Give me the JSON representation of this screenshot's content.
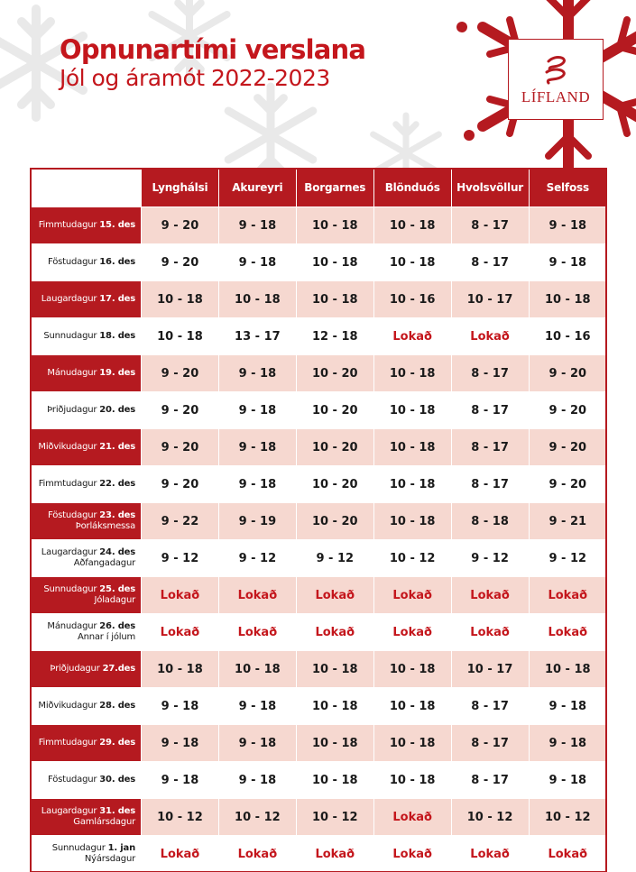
{
  "title": "Opnunartími verslana",
  "subtitle": "Jól og áramót 2022-2023",
  "logo": {
    "text": "LÍFLAND",
    "icon": "lifland-swirl-logo-icon"
  },
  "colors": {
    "brand_red": "#b51a20",
    "row_tint": "#f6d8d0",
    "closed_text": "#c4161c"
  },
  "columns": [
    "Lynghálsi",
    "Akureyri",
    "Borgarnes",
    "Blönduós",
    "Hvolsvöllur",
    "Selfoss"
  ],
  "rows": [
    {
      "weekday": "Fimmtudagur",
      "date": "15. des",
      "note": "",
      "hours": [
        "9 - 20",
        "9 - 18",
        "10 - 18",
        "10 - 18",
        "8 - 17",
        "9 - 18"
      ]
    },
    {
      "weekday": "Föstudagur",
      "date": "16. des",
      "note": "",
      "hours": [
        "9 - 20",
        "9 - 18",
        "10 - 18",
        "10 - 18",
        "8 - 17",
        "9 - 18"
      ]
    },
    {
      "weekday": "Laugardagur",
      "date": "17. des",
      "note": "",
      "hours": [
        "10 - 18",
        "10 - 18",
        "10 - 18",
        "10 - 16",
        "10 - 17",
        "10 - 18"
      ]
    },
    {
      "weekday": "Sunnudagur",
      "date": "18. des",
      "note": "",
      "hours": [
        "10 - 18",
        "13 - 17",
        "12 - 18",
        "Lokað",
        "Lokað",
        "10 - 16"
      ]
    },
    {
      "weekday": "Mánudagur",
      "date": "19. des",
      "note": "",
      "hours": [
        "9 - 20",
        "9 - 18",
        "10 - 20",
        "10 - 18",
        "8 - 17",
        "9 - 20"
      ]
    },
    {
      "weekday": "Þriðjudagur",
      "date": "20. des",
      "note": "",
      "hours": [
        "9 - 20",
        "9 - 18",
        "10 - 20",
        "10 - 18",
        "8 - 17",
        "9 - 20"
      ]
    },
    {
      "weekday": "Miðvikudagur",
      "date": "21. des",
      "note": "",
      "hours": [
        "9 - 20",
        "9 - 18",
        "10 - 20",
        "10 - 18",
        "8 - 17",
        "9 - 20"
      ]
    },
    {
      "weekday": "Fimmtudagur",
      "date": "22. des",
      "note": "",
      "hours": [
        "9 - 20",
        "9 - 18",
        "10 - 20",
        "10 - 18",
        "8 - 17",
        "9 - 20"
      ]
    },
    {
      "weekday": "Föstudagur",
      "date": "23. des",
      "note": "Þorláksmessa",
      "hours": [
        "9 - 22",
        "9 - 19",
        "10 - 20",
        "10 - 18",
        "8 - 18",
        "9 - 21"
      ]
    },
    {
      "weekday": "Laugardagur",
      "date": "24. des",
      "note": "Aðfangadagur",
      "hours": [
        "9 - 12",
        "9 - 12",
        "9 - 12",
        "10 - 12",
        "9 - 12",
        "9 - 12"
      ]
    },
    {
      "weekday": "Sunnudagur",
      "date": "25. des",
      "note": "Jóladagur",
      "hours": [
        "Lokað",
        "Lokað",
        "Lokað",
        "Lokað",
        "Lokað",
        "Lokað"
      ]
    },
    {
      "weekday": "Mánudagur",
      "date": "26. des",
      "note": "Annar í jólum",
      "hours": [
        "Lokað",
        "Lokað",
        "Lokað",
        "Lokað",
        "Lokað",
        "Lokað"
      ]
    },
    {
      "weekday": "Þriðjudagur",
      "date": "27.des",
      "note": "",
      "hours": [
        "10 - 18",
        "10 - 18",
        "10 - 18",
        "10 - 18",
        "10 - 17",
        "10 - 18"
      ]
    },
    {
      "weekday": "Miðvikudagur",
      "date": "28. des",
      "note": "",
      "hours": [
        "9 - 18",
        "9 - 18",
        "10 - 18",
        "10 - 18",
        "8 - 17",
        "9 - 18"
      ]
    },
    {
      "weekday": "Fimmtudagur",
      "date": "29. des",
      "note": "",
      "hours": [
        "9 - 18",
        "9 - 18",
        "10 - 18",
        "10 - 18",
        "8 - 17",
        "9 - 18"
      ]
    },
    {
      "weekday": "Föstudagur",
      "date": "30. des",
      "note": "",
      "hours": [
        "9 - 18",
        "9 - 18",
        "10 - 18",
        "10 - 18",
        "8 - 17",
        "9 - 18"
      ]
    },
    {
      "weekday": "Laugardagur",
      "date": "31. des",
      "note": "Gamlársdagur",
      "hours": [
        "10 - 12",
        "10 - 12",
        "10 - 12",
        "Lokað",
        "10 - 12",
        "10 - 12"
      ]
    },
    {
      "weekday": "Sunnudagur",
      "date": "1. jan",
      "note": "Nýársdagur",
      "hours": [
        "Lokað",
        "Lokað",
        "Lokað",
        "Lokað",
        "Lokað",
        "Lokað"
      ]
    }
  ]
}
